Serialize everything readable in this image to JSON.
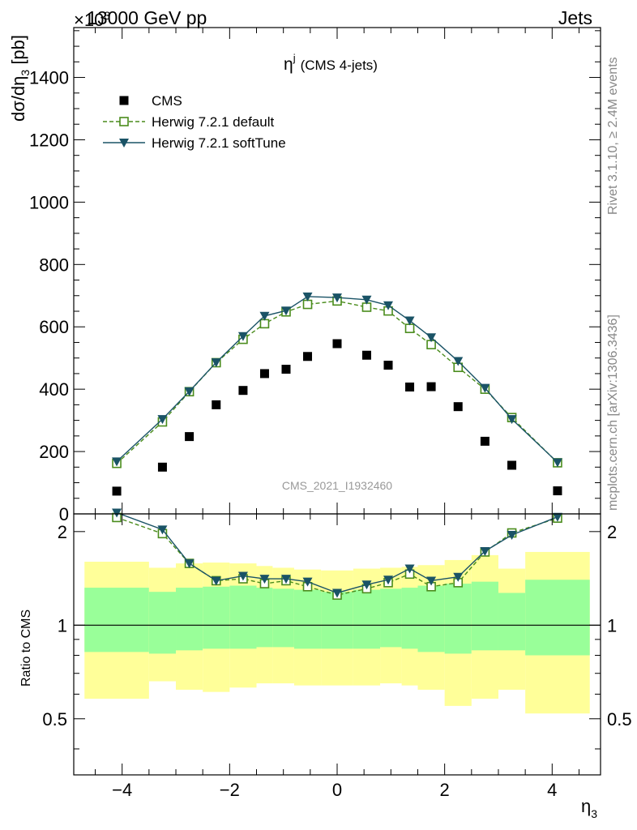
{
  "header": {
    "left": "13000 GeV pp",
    "right": "Jets",
    "exponent": "×10",
    "exponent_power": "3"
  },
  "side_labels": {
    "rivet": "Rivet 3.1.10, ≥ 2.4M events",
    "mcplots": "mcplots.cern.ch [arXiv:1306.3436]"
  },
  "watermark": "CMS_2021_I1932460",
  "chart_data": [
    {
      "type": "scatter",
      "title": "ηʲ (CMS 4-jets)",
      "title_main": "η",
      "title_sup": "j",
      "title_rest": "(CMS 4-jets)",
      "ylabel": "dσ/dη₃ [pb]",
      "ylabel_main": "dσ/dη",
      "ylabel_sub": "3",
      "ylabel_unit": " [pb]",
      "xlim": [
        -4.9,
        4.9
      ],
      "ylim": [
        0,
        1560
      ],
      "yticks": [
        0,
        200,
        400,
        600,
        800,
        1000,
        1200,
        1400
      ],
      "legend_position": "top-left",
      "legend": [
        {
          "name": "CMS",
          "color": "#000000",
          "marker": "square-filled"
        },
        {
          "name": "Herwig 7.2.1 default",
          "color": "#4a8c1c",
          "marker": "square-open",
          "line": "dashed"
        },
        {
          "name": "Herwig 7.2.1 softTune",
          "color": "#1a5366",
          "marker": "triangle-down",
          "line": "solid"
        }
      ],
      "x": [
        -4.1,
        -3.25,
        -2.75,
        -2.25,
        -1.75,
        -1.35,
        -0.95,
        -0.55,
        0.0,
        0.55,
        0.95,
        1.35,
        1.75,
        2.25,
        2.75,
        3.25,
        4.1
      ],
      "series": [
        {
          "name": "CMS",
          "values": [
            73,
            150,
            248,
            350,
            396,
            450,
            464,
            505,
            546,
            509,
            477,
            407,
            408,
            344,
            233,
            156,
            74
          ]
        },
        {
          "name": "Herwig 7.2.1 default",
          "values": [
            162,
            295,
            392,
            485,
            560,
            610,
            648,
            672,
            683,
            663,
            651,
            595,
            543,
            470,
            400,
            309,
            164
          ]
        },
        {
          "name": "Herwig 7.2.1 softTune",
          "values": [
            168,
            304,
            393,
            486,
            570,
            635,
            652,
            697,
            694,
            687,
            669,
            620,
            566,
            490,
            404,
            304,
            165
          ]
        }
      ]
    },
    {
      "type": "scatter",
      "ylabel": "Ratio to CMS",
      "xlabel": "η₃",
      "xlabel_main": "η",
      "xlabel_sub": "3",
      "xlim": [
        -4.9,
        4.9
      ],
      "ylim": [
        0.33,
        2.28
      ],
      "xticks": [
        -4,
        -2,
        0,
        2,
        4
      ],
      "yticks": [
        0.5,
        1,
        2
      ],
      "ytick_labels": [
        "0.5",
        "1",
        "2"
      ],
      "bins": [
        -4.7,
        -3.5,
        -3.0,
        -2.5,
        -2.0,
        -1.5,
        -1.2,
        -0.8,
        -0.3,
        0.3,
        0.8,
        1.2,
        1.5,
        2.0,
        2.5,
        3.0,
        3.5,
        4.7
      ],
      "band_inner": {
        "color": "#99ff99",
        "hi": [
          1.32,
          1.28,
          1.32,
          1.33,
          1.34,
          1.32,
          1.31,
          1.3,
          1.28,
          1.3,
          1.31,
          1.32,
          1.34,
          1.36,
          1.38,
          1.27,
          1.4
        ],
        "lo": [
          0.82,
          0.81,
          0.83,
          0.84,
          0.84,
          0.85,
          0.85,
          0.84,
          0.84,
          0.84,
          0.85,
          0.84,
          0.82,
          0.81,
          0.83,
          0.83,
          0.8
        ]
      },
      "band_outer": {
        "color": "#ffff99",
        "hi": [
          1.6,
          1.53,
          1.58,
          1.59,
          1.58,
          1.55,
          1.53,
          1.51,
          1.5,
          1.52,
          1.53,
          1.54,
          1.56,
          1.62,
          1.68,
          1.52,
          1.72
        ],
        "lo": [
          0.58,
          0.66,
          0.62,
          0.61,
          0.63,
          0.65,
          0.65,
          0.64,
          0.64,
          0.64,
          0.65,
          0.64,
          0.62,
          0.55,
          0.58,
          0.62,
          0.52
        ]
      },
      "series": [
        {
          "name": "Herwig 7.2.1 default",
          "values": [
            2.22,
            1.97,
            1.58,
            1.39,
            1.41,
            1.36,
            1.39,
            1.33,
            1.25,
            1.31,
            1.37,
            1.46,
            1.33,
            1.37,
            1.72,
            1.98,
            2.21
          ]
        },
        {
          "name": "Herwig 7.2.1 softTune",
          "values": [
            2.3,
            2.03,
            1.58,
            1.39,
            1.44,
            1.41,
            1.41,
            1.38,
            1.27,
            1.35,
            1.4,
            1.52,
            1.39,
            1.43,
            1.73,
            1.95,
            2.23
          ]
        }
      ]
    }
  ]
}
